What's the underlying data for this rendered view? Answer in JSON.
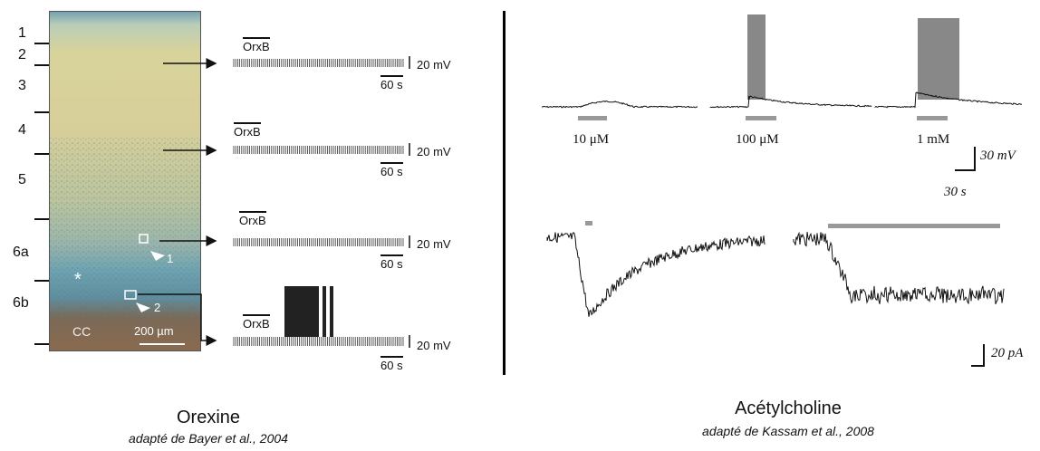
{
  "left_panel": {
    "layers": [
      "1",
      "2",
      "3",
      "4",
      "5",
      "6a",
      "6b"
    ],
    "tissue_labels": {
      "cc": "CC",
      "asterisk": "*",
      "cell1": "1",
      "cell2": "2",
      "scale_bar": "200 µm"
    },
    "recordings": [
      {
        "drug_label": "OrxB",
        "voltage_scale": "20 mV",
        "time_scale": "60 s"
      },
      {
        "drug_label": "OrxB",
        "voltage_scale": "20 mV",
        "time_scale": "60 s"
      },
      {
        "drug_label": "OrxB",
        "voltage_scale": "20 mV",
        "time_scale": "60 s"
      },
      {
        "drug_label": "OrxB",
        "voltage_scale": "20 mV",
        "time_scale": "60 s"
      }
    ],
    "caption_title": "Orexine",
    "caption_source": "adapté de Bayer et al., 2004"
  },
  "right_panel": {
    "concentrations": [
      "10 μM",
      "100 μM",
      "1 mM"
    ],
    "voltage_scale": "30 mV",
    "time_scale": "30 s",
    "current_scale": "20 pA",
    "caption_title": "Acétylcholine",
    "caption_source": "adapté de Kassam et al., 2008"
  },
  "colors": {
    "bar_gray": "#999999",
    "divider": "#000000"
  }
}
